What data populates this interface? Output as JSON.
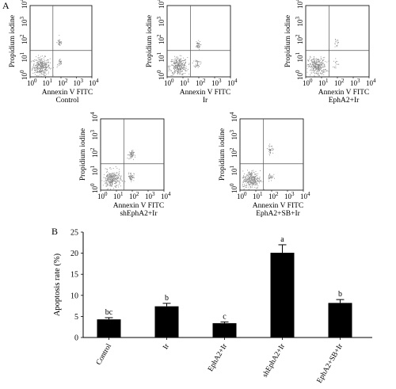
{
  "panel_labels": {
    "a": "A",
    "b": "B"
  },
  "chart_data": [
    {
      "type": "scatter",
      "panel": "A",
      "xlabel": "Annexin V FITC",
      "ylabel": "Propidium iodine",
      "log_scale": true,
      "xlim": [
        1,
        10000
      ],
      "ylim": [
        1,
        10000
      ],
      "tick_labels": [
        "10",
        "1",
        "2",
        "3",
        "4"
      ],
      "tick_base": "10",
      "tick_exponents": [
        "0",
        "1",
        "2",
        "3",
        "4"
      ],
      "quadrant_gate": {
        "x": 30,
        "y": 30
      },
      "point_color": "#888888",
      "plots": [
        {
          "label": "Control",
          "live_n": 320,
          "early_n": 24,
          "late_n": 32,
          "late_y": 90
        },
        {
          "label": "Ir",
          "live_n": 320,
          "early_n": 36,
          "late_n": 40,
          "late_y": 60
        },
        {
          "label": "EphA2+Ir",
          "live_n": 320,
          "early_n": 14,
          "late_n": 16,
          "late_y": 80
        },
        {
          "label": "shEphA2+Ir",
          "live_n": 300,
          "early_n": 56,
          "late_n": 56,
          "late_y": 100
        },
        {
          "label": "EphA2+SB+Ir",
          "live_n": 300,
          "early_n": 30,
          "late_n": 34,
          "late_y": 200
        }
      ]
    },
    {
      "type": "bar",
      "panel": "B",
      "ylabel": "Apoptosis rate (%)",
      "ylim": [
        0,
        25
      ],
      "yticks": [
        "0",
        "5",
        "10",
        "15",
        "20",
        "25"
      ],
      "categories": [
        "Control",
        "Ir",
        "EphA2+Ir",
        "shEphA2+Ir",
        "EphA2+SB+Ir"
      ],
      "values": [
        4.3,
        7.4,
        3.4,
        20.1,
        8.2
      ],
      "errors": [
        0.4,
        0.7,
        0.3,
        1.9,
        0.8
      ],
      "significance": [
        "bc",
        "b",
        "c",
        "a",
        "b"
      ],
      "bar_color": "#000000"
    }
  ]
}
